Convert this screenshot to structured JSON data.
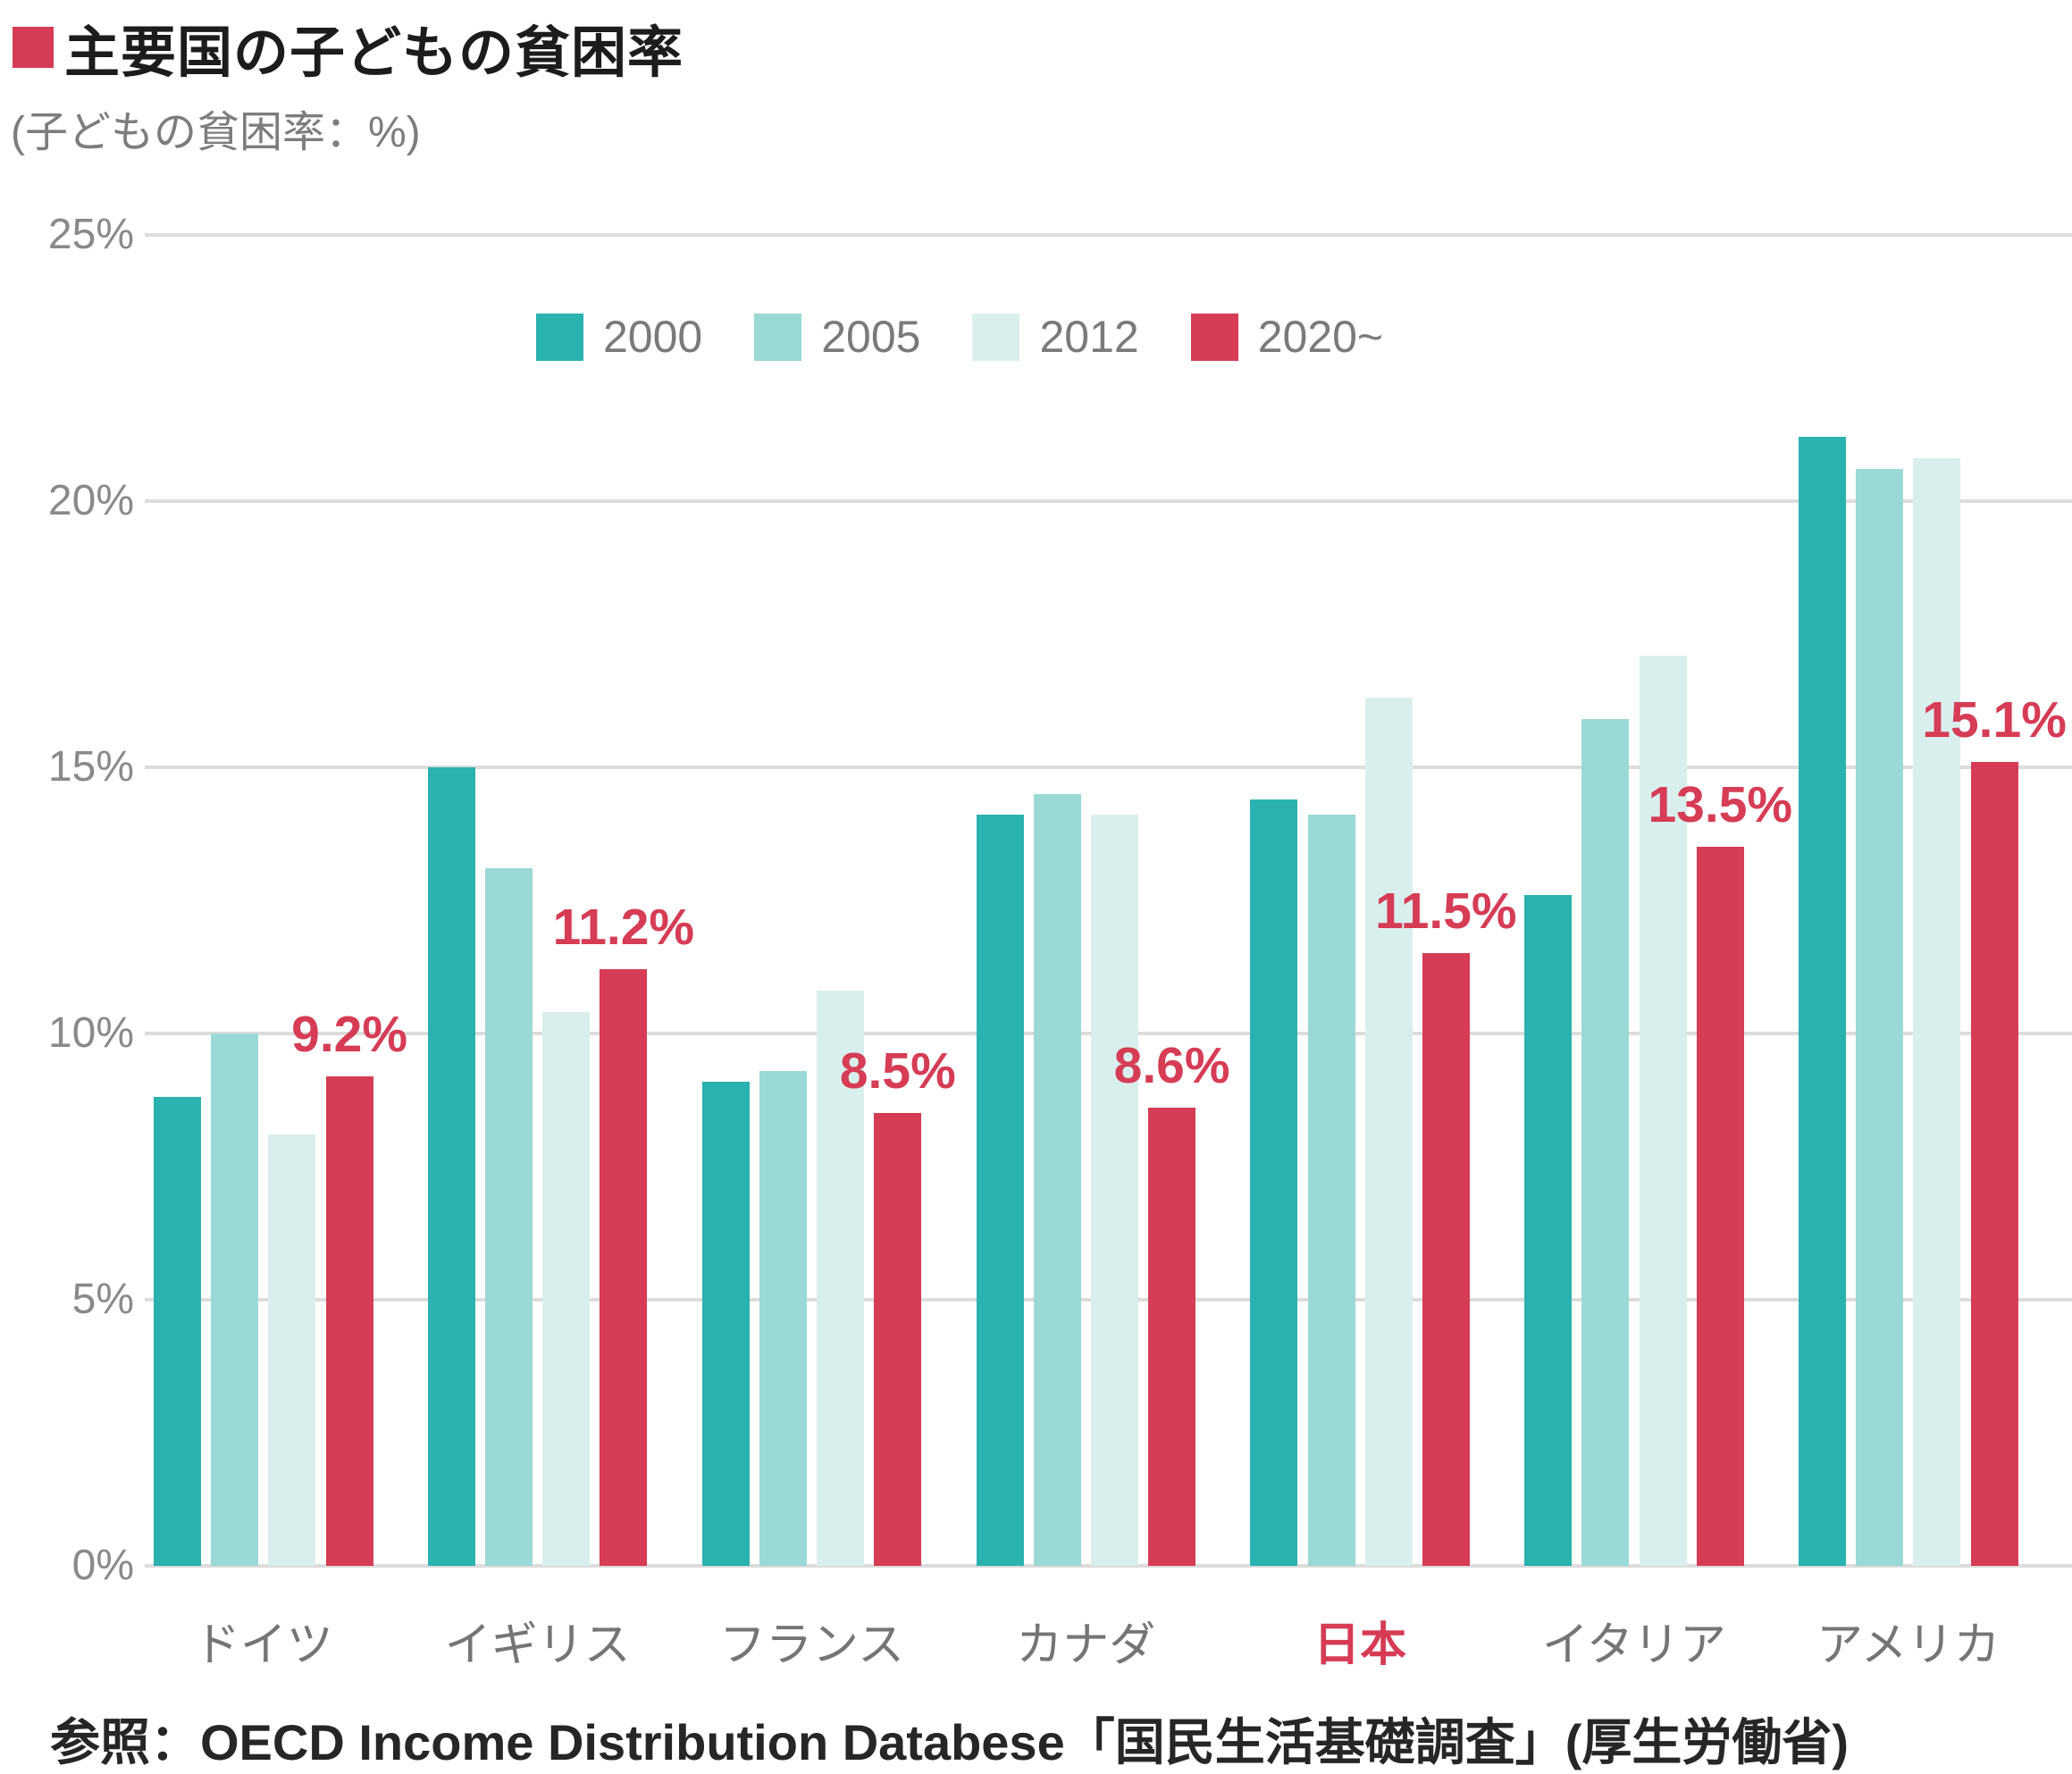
{
  "title": {
    "text": "主要国の子どもの貧困率"
  },
  "subtitle": "(子どもの貧困率：%)",
  "source": "参照：OECD Income Distribution Databese「国民生活基礎調査」(厚生労働省)",
  "colors": {
    "accent_red": "#d63c55",
    "teal_2000": "#2ab2b0",
    "teal_2005": "#9ad9d5",
    "teal_2012": "#d9efed",
    "grid": "#dcdcdc",
    "axis_text": "#8a8a8a",
    "title_text": "#1c1c1c"
  },
  "chart_data": {
    "type": "bar",
    "title": "主要国の子どもの貧困率",
    "ylabel": "子どもの貧困率（%）",
    "xlabel": "",
    "ylim": [
      0,
      25
    ],
    "ytick_values": [
      0,
      5,
      10,
      15,
      20,
      25
    ],
    "ytick_labels": [
      "0%",
      "5%",
      "10%",
      "15%",
      "20%",
      "25%"
    ],
    "grid": true,
    "legend_position": "top",
    "categories": [
      "ドイツ",
      "イギリス",
      "フランス",
      "カナダ",
      "日本",
      "イタリア",
      "アメリカ"
    ],
    "highlight_category": "日本",
    "series": [
      {
        "name": "2000",
        "color": "#2ab2b0",
        "values": [
          8.8,
          15.0,
          9.1,
          14.1,
          14.4,
          12.6,
          21.2
        ]
      },
      {
        "name": "2005",
        "color": "#9ad9d5",
        "values": [
          10.0,
          13.1,
          9.3,
          14.5,
          14.1,
          15.9,
          20.6
        ]
      },
      {
        "name": "2012",
        "color": "#d9efed",
        "values": [
          8.1,
          10.4,
          10.8,
          14.1,
          16.3,
          17.1,
          20.8
        ]
      },
      {
        "name": "2020~",
        "color": "#d63c55",
        "values": [
          9.2,
          11.2,
          8.5,
          8.6,
          11.5,
          13.5,
          15.1
        ],
        "data_labels": [
          "9.2%",
          "11.2%",
          "8.5%",
          "8.6%",
          "11.5%",
          "13.5%",
          "15.1%"
        ]
      }
    ]
  }
}
